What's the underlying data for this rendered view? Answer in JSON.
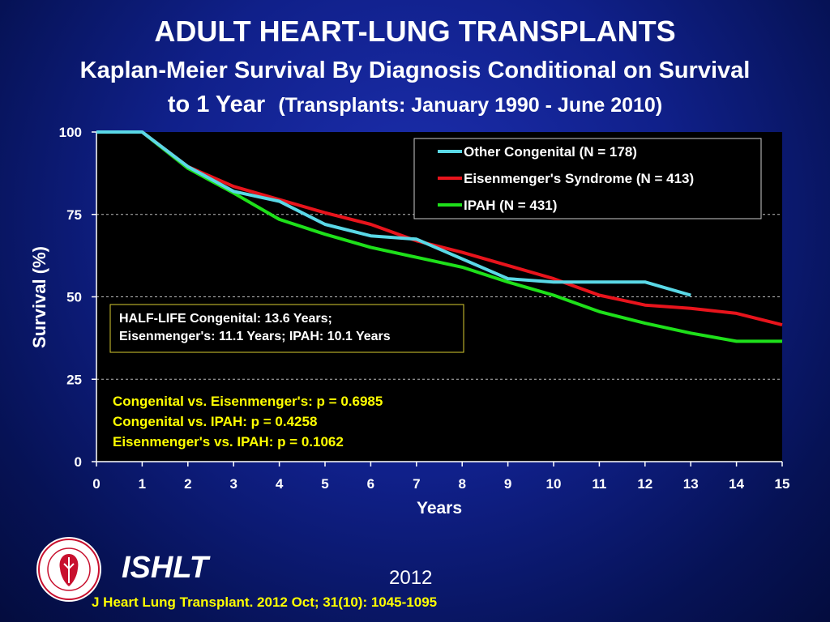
{
  "header": {
    "title": "ADULT HEART-LUNG TRANSPLANTS",
    "subtitle_line1": "Kaplan-Meier Survival By Diagnosis Conditional on Survival",
    "subtitle_line2_main": "to 1 Year",
    "subtitle_line2_paren": "(Transplants: January 1990 - June 2010)"
  },
  "chart_data": {
    "type": "line",
    "xlabel": "Years",
    "ylabel": "Survival (%)",
    "xlim": [
      0,
      15
    ],
    "ylim": [
      0,
      100
    ],
    "x_ticks": [
      "0",
      "1",
      "2",
      "3",
      "4",
      "5",
      "6",
      "7",
      "8",
      "9",
      "10",
      "11",
      "12",
      "13",
      "14",
      "15"
    ],
    "y_ticks": [
      "0",
      "25",
      "50",
      "75",
      "100"
    ],
    "grid": "horizontal dashed at 25, 50, 75",
    "legend_position": "top-right",
    "series": [
      {
        "name": "Other Congenital (N = 178)",
        "color": "#5ad8e6",
        "x": [
          0,
          1,
          2,
          3,
          4,
          5,
          6,
          7,
          8,
          9,
          10,
          11,
          12,
          13
        ],
        "y": [
          100,
          100,
          89.5,
          82,
          79,
          72,
          68.5,
          67.5,
          61.5,
          55.5,
          54.5,
          54.5,
          54.5,
          50.5
        ]
      },
      {
        "name": "Eisenmenger's Syndrome  (N = 413)",
        "color": "#e8141c",
        "x": [
          0,
          1,
          2,
          3,
          4,
          5,
          6,
          7,
          8,
          9,
          10,
          11,
          12,
          13,
          14,
          15
        ],
        "y": [
          100,
          100,
          89.5,
          83.5,
          79.5,
          75.5,
          72,
          67,
          63.5,
          59.5,
          55.5,
          50.5,
          47.5,
          46.5,
          45,
          41.5
        ]
      },
      {
        "name": "IPAH (N = 431)",
        "color": "#1ee01a",
        "x": [
          0,
          1,
          2,
          3,
          4,
          5,
          6,
          7,
          8,
          9,
          10,
          11,
          12,
          13,
          14,
          15
        ],
        "y": [
          100,
          100,
          89,
          81.5,
          73.5,
          69,
          65,
          62,
          59,
          54.5,
          50.5,
          45.5,
          42,
          39,
          36.5,
          36.5
        ]
      }
    ],
    "annotations": {
      "half_life_line1": "HALF-LIFE  Congenital: 13.6 Years;",
      "half_life_line2": "Eisenmenger's: 11.1 Years; IPAH: 10.1 Years",
      "pvalue_line1": "Congenital vs. Eisenmenger's: p =  0.6985",
      "pvalue_line2": "Congenital vs. IPAH: p = 0.4258",
      "pvalue_line3": "Eisenmenger's vs. IPAH: p = 0.1062",
      "pvalue_color": "#ffff00"
    }
  },
  "footer": {
    "brand": "ISHLT",
    "year": "2012",
    "citation": "J Heart Lung Transplant.  2012 Oct; 31(10): 1045-1095",
    "logo_icon": "ishlt-seal-icon",
    "logo_ring_text": "INTERNATIONAL SOCIETY FOR HEART & LUNG TRANSPLANTATION"
  }
}
